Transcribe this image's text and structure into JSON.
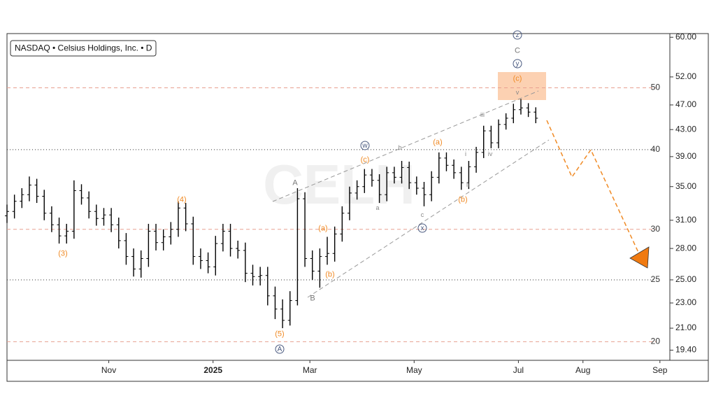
{
  "chart_data": {
    "type": "ohlc",
    "legend_title": "NASDAQ • Celsius Holdings, Inc. • D",
    "watermark": "CELH",
    "log_scale": true,
    "color": "#000000",
    "x": [
      0,
      3,
      6,
      9,
      12,
      15,
      18,
      21,
      24,
      27,
      30,
      33,
      36,
      39,
      42,
      45,
      48,
      51,
      54,
      57,
      60,
      63,
      66,
      69,
      72,
      75,
      78,
      81,
      84,
      87,
      90,
      93,
      96,
      99,
      102,
      105,
      108,
      111,
      114,
      117,
      120,
      123,
      126,
      129,
      132,
      135,
      138,
      141,
      144,
      147,
      150,
      153,
      156,
      159,
      162,
      165,
      168,
      171,
      174,
      177,
      180,
      183,
      186,
      189,
      192,
      195,
      198,
      201,
      204,
      207,
      210,
      213
    ],
    "open": [
      31.5,
      32.0,
      33.2,
      34.0,
      35.2,
      33.8,
      31.8,
      30.5,
      29.3,
      29.8,
      34.5,
      33.6,
      32.0,
      31.2,
      31.6,
      30.5,
      28.8,
      27.2,
      26.0,
      27.0,
      29.8,
      28.6,
      29.2,
      30.0,
      32.4,
      30.6,
      27.2,
      26.8,
      26.2,
      28.5,
      29.8,
      28.0,
      27.8,
      25.6,
      25.3,
      25.4,
      23.6,
      22.5,
      21.6,
      23.2,
      33.5,
      27.0,
      25.8,
      27.2,
      27.5,
      29.5,
      31.8,
      34.2,
      35.0,
      36.5,
      35.8,
      34.0,
      36.8,
      36.2,
      37.5,
      35.5,
      34.8,
      34.0,
      36.2,
      38.8,
      37.8,
      36.8,
      35.5,
      37.6,
      39.6,
      42.8,
      41.0,
      43.8,
      44.8,
      46.2,
      46.5,
      45.8
    ],
    "high": [
      32.8,
      34.0,
      34.8,
      36.3,
      36.0,
      34.6,
      32.6,
      31.3,
      30.6,
      35.8,
      35.3,
      34.4,
      32.8,
      32.4,
      32.4,
      31.3,
      29.6,
      28.0,
      27.8,
      30.6,
      30.6,
      30.0,
      30.8,
      33.2,
      33.0,
      31.4,
      28.0,
      27.6,
      29.3,
      30.6,
      30.6,
      28.8,
      28.6,
      26.4,
      26.2,
      26.2,
      24.4,
      23.3,
      24.0,
      34.8,
      34.3,
      27.8,
      28.0,
      29.2,
      30.3,
      32.6,
      35.0,
      35.8,
      37.3,
      37.3,
      36.6,
      37.6,
      37.6,
      38.4,
      38.3,
      36.3,
      35.6,
      37.0,
      39.6,
      39.6,
      38.6,
      37.6,
      38.4,
      40.4,
      43.6,
      43.6,
      44.6,
      45.6,
      47.2,
      48.0,
      47.3,
      46.6
    ],
    "low": [
      30.7,
      31.2,
      32.4,
      33.2,
      33.0,
      31.0,
      29.7,
      28.5,
      28.5,
      29.0,
      32.8,
      31.2,
      30.4,
      30.4,
      29.7,
      28.0,
      26.4,
      25.3,
      25.2,
      26.2,
      27.8,
      27.8,
      28.4,
      29.2,
      29.8,
      26.4,
      26.0,
      25.6,
      25.4,
      27.7,
      27.2,
      27.0,
      24.8,
      24.5,
      24.5,
      22.8,
      21.7,
      21.0,
      21.2,
      22.8,
      26.2,
      25.0,
      24.3,
      26.4,
      26.7,
      28.7,
      31.0,
      33.4,
      34.2,
      35.0,
      33.0,
      33.2,
      35.4,
      35.4,
      34.7,
      34.0,
      32.6,
      33.2,
      35.4,
      37.0,
      36.0,
      34.6,
      34.7,
      36.8,
      38.8,
      40.2,
      40.2,
      43.0,
      44.0,
      45.4,
      45.0,
      44.0
    ],
    "close": [
      32.0,
      33.2,
      34.0,
      35.2,
      33.8,
      31.8,
      30.5,
      29.3,
      29.8,
      34.5,
      33.6,
      32.0,
      31.2,
      31.6,
      30.5,
      28.8,
      27.2,
      26.0,
      27.0,
      29.8,
      28.6,
      29.2,
      30.0,
      32.4,
      30.6,
      27.2,
      26.8,
      26.2,
      28.5,
      29.8,
      28.0,
      27.8,
      25.6,
      25.3,
      25.4,
      23.6,
      22.5,
      21.6,
      23.2,
      33.5,
      27.0,
      25.8,
      27.2,
      27.5,
      29.5,
      31.8,
      34.2,
      35.0,
      36.5,
      35.8,
      34.0,
      36.8,
      36.2,
      37.5,
      35.5,
      34.8,
      34.0,
      36.2,
      38.8,
      37.8,
      36.8,
      35.5,
      37.6,
      39.6,
      42.8,
      41.0,
      43.8,
      44.8,
      46.2,
      46.5,
      45.8,
      44.8
    ],
    "xlim": [
      0,
      267
    ],
    "xticks": [
      {
        "value": 41,
        "label": "Nov"
      },
      {
        "value": 83,
        "label": "2025"
      },
      {
        "value": 122,
        "label": "Mar"
      },
      {
        "value": 164,
        "label": "May"
      },
      {
        "value": 206,
        "label": "Jul"
      },
      {
        "value": 232,
        "label": "Aug"
      },
      {
        "value": 263,
        "label": "Sep"
      }
    ],
    "ylim": [
      18.7,
      60.8
    ],
    "yticks": [
      {
        "value": 60,
        "label": "60.00"
      },
      {
        "value": 52,
        "label": "52.00"
      },
      {
        "value": 47,
        "label": "47.00"
      },
      {
        "value": 43,
        "label": "43.00"
      },
      {
        "value": 39,
        "label": "39.00"
      },
      {
        "value": 35,
        "label": "35.00"
      },
      {
        "value": 31,
        "label": "31.00"
      },
      {
        "value": 28,
        "label": "28.00"
      },
      {
        "value": 25,
        "label": "25.00"
      },
      {
        "value": 23,
        "label": "23.00"
      },
      {
        "value": 21,
        "label": "21.00"
      },
      {
        "value": 19.4,
        "label": "19.40"
      }
    ],
    "levels": [
      {
        "value": 50,
        "color": "#e8a090",
        "style": "dashed"
      },
      {
        "value": 40,
        "color": "#333333",
        "style": "dotted"
      },
      {
        "value": 30,
        "color": "#e8a090",
        "style": "dashed"
      },
      {
        "value": 25,
        "color": "#333333",
        "style": "dotted"
      },
      {
        "value": 20,
        "color": "#e8a090",
        "style": "dashed"
      }
    ],
    "annotations": [
      "(3)",
      "(4)",
      "(5)",
      "A",
      "A",
      "B",
      "(a)",
      "(b)",
      "(c)",
      "w",
      "a",
      "b",
      "c",
      "x",
      "(a)",
      "(b)",
      "i",
      "ii",
      "iii",
      "iv",
      "v",
      "(c)",
      "y",
      "C",
      "z"
    ]
  }
}
